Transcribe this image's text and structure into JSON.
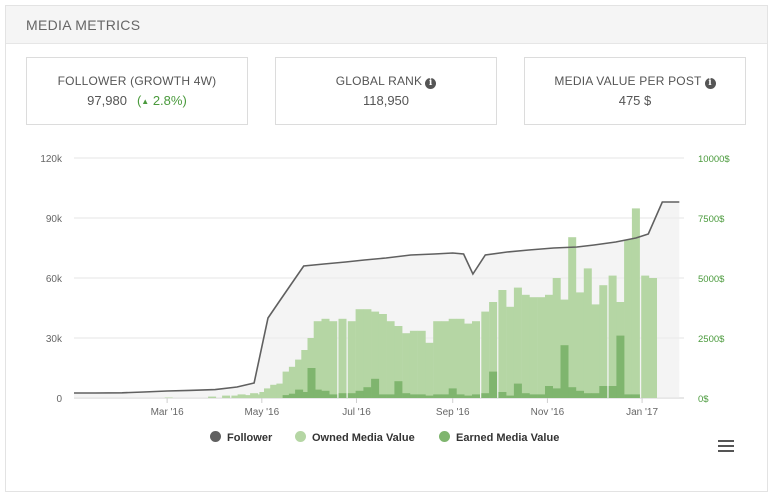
{
  "panel": {
    "title": "MEDIA METRICS"
  },
  "kpis": [
    {
      "label": "FOLLOWER (GROWTH 4W)",
      "value": "97,980",
      "growth": "2.8%",
      "growth_icon": "triangle-up-icon"
    },
    {
      "label": "GLOBAL RANK",
      "value": "118,950",
      "icon": "info-icon"
    },
    {
      "label": "MEDIA VALUE PER POST",
      "value": "475 $",
      "icon": "info-icon"
    }
  ],
  "legend": {
    "follower": "Follower",
    "owned": "Owned Media Value",
    "earned": "Earned Media Value"
  },
  "colors": {
    "follower": "#606060",
    "owned": "#b5d6a4",
    "earned": "#7fb56e",
    "right_axis": "#4a9a3c",
    "growth": "#4a9a3c"
  },
  "chart_data": {
    "type": "bar",
    "x_start": "2016-01-01",
    "x_end": "2017-01-28",
    "x_ticks": [
      "Mar '16",
      "May '16",
      "Jul '16",
      "Sep '16",
      "Nov '16",
      "Jan '17"
    ],
    "y_left": {
      "ticks": [
        "0",
        "30k",
        "60k",
        "90k",
        "120k"
      ],
      "values": [
        0,
        30000,
        60000,
        90000,
        120000
      ],
      "range": [
        0,
        120000
      ]
    },
    "y_right": {
      "ticks": [
        "0$",
        "2500$",
        "5000$",
        "7500$",
        "10000$"
      ],
      "values": [
        0,
        2500,
        5000,
        7500,
        10000
      ],
      "range": [
        0,
        10000
      ]
    },
    "grid": true,
    "legend_position": "bottom-center",
    "series": [
      {
        "name": "Follower",
        "type": "line",
        "axis": "left",
        "points": [
          [
            "2016-01-01",
            2500
          ],
          [
            "2016-01-15",
            2500
          ],
          [
            "2016-02-01",
            2600
          ],
          [
            "2016-02-15",
            3000
          ],
          [
            "2016-03-01",
            3500
          ],
          [
            "2016-03-15",
            3800
          ],
          [
            "2016-04-01",
            4200
          ],
          [
            "2016-04-15",
            5500
          ],
          [
            "2016-04-26",
            7500
          ],
          [
            "2016-05-05",
            40000
          ],
          [
            "2016-05-12",
            48000
          ],
          [
            "2016-05-20",
            57000
          ],
          [
            "2016-05-28",
            66000
          ],
          [
            "2016-06-10",
            67000
          ],
          [
            "2016-06-24",
            68000
          ],
          [
            "2016-07-06",
            69000
          ],
          [
            "2016-07-20",
            70000
          ],
          [
            "2016-08-05",
            71500
          ],
          [
            "2016-08-20",
            72000
          ],
          [
            "2016-09-01",
            72500
          ],
          [
            "2016-09-08",
            72000
          ],
          [
            "2016-09-14",
            62000
          ],
          [
            "2016-09-22",
            71500
          ],
          [
            "2016-10-06",
            73000
          ],
          [
            "2016-10-20",
            74000
          ],
          [
            "2016-11-05",
            75000
          ],
          [
            "2016-11-20",
            75500
          ],
          [
            "2016-12-01",
            76500
          ],
          [
            "2016-12-15",
            78000
          ],
          [
            "2016-12-28",
            80000
          ],
          [
            "2017-01-05",
            82000
          ],
          [
            "2017-01-14",
            98000
          ],
          [
            "2017-01-25",
            98000
          ]
        ]
      },
      {
        "name": "Owned Media Value",
        "type": "column",
        "axis": "right",
        "points": [
          [
            "2016-03-02",
            20
          ],
          [
            "2016-03-30",
            60
          ],
          [
            "2016-04-08",
            100
          ],
          [
            "2016-04-14",
            100
          ],
          [
            "2016-04-18",
            150
          ],
          [
            "2016-04-22",
            120
          ],
          [
            "2016-04-26",
            200
          ],
          [
            "2016-04-29",
            150
          ],
          [
            "2016-05-02",
            250
          ],
          [
            "2016-05-05",
            400
          ],
          [
            "2016-05-09",
            550
          ],
          [
            "2016-05-13",
            600
          ],
          [
            "2016-05-17",
            1100
          ],
          [
            "2016-05-21",
            1300
          ],
          [
            "2016-05-25",
            1600
          ],
          [
            "2016-05-29",
            2000
          ],
          [
            "2016-06-02",
            2500
          ],
          [
            "2016-06-06",
            3200
          ],
          [
            "2016-06-11",
            3300
          ],
          [
            "2016-06-16",
            3200
          ],
          [
            "2016-06-22",
            3300
          ],
          [
            "2016-06-28",
            3200
          ],
          [
            "2016-07-03",
            3700
          ],
          [
            "2016-07-08",
            3700
          ],
          [
            "2016-07-13",
            3600
          ],
          [
            "2016-07-18",
            3500
          ],
          [
            "2016-07-23",
            3200
          ],
          [
            "2016-07-28",
            3000
          ],
          [
            "2016-08-02",
            2700
          ],
          [
            "2016-08-07",
            2800
          ],
          [
            "2016-08-12",
            2800
          ],
          [
            "2016-08-17",
            2300
          ],
          [
            "2016-08-22",
            3200
          ],
          [
            "2016-08-27",
            3200
          ],
          [
            "2016-09-01",
            3300
          ],
          [
            "2016-09-06",
            3300
          ],
          [
            "2016-09-11",
            3100
          ],
          [
            "2016-09-16",
            3200
          ],
          [
            "2016-09-22",
            3600
          ],
          [
            "2016-09-27",
            4000
          ],
          [
            "2016-10-03",
            4500
          ],
          [
            "2016-10-08",
            3800
          ],
          [
            "2016-10-13",
            4600
          ],
          [
            "2016-10-18",
            4300
          ],
          [
            "2016-10-23",
            4200
          ],
          [
            "2016-10-28",
            4200
          ],
          [
            "2016-11-02",
            4300
          ],
          [
            "2016-11-07",
            5000
          ],
          [
            "2016-11-12",
            4100
          ],
          [
            "2016-11-17",
            6700
          ],
          [
            "2016-11-22",
            4400
          ],
          [
            "2016-11-27",
            5400
          ],
          [
            "2016-12-02",
            3900
          ],
          [
            "2016-12-07",
            4700
          ],
          [
            "2016-12-13",
            5100
          ],
          [
            "2016-12-18",
            4000
          ],
          [
            "2016-12-23",
            6600
          ],
          [
            "2016-12-28",
            7900
          ],
          [
            "2017-01-03",
            5100
          ],
          [
            "2017-01-08",
            5000
          ]
        ]
      },
      {
        "name": "Earned Media Value",
        "type": "column",
        "axis": "right",
        "points": [
          [
            "2016-05-17",
            120
          ],
          [
            "2016-05-21",
            180
          ],
          [
            "2016-05-25",
            350
          ],
          [
            "2016-05-29",
            250
          ],
          [
            "2016-06-02",
            1250
          ],
          [
            "2016-06-06",
            350
          ],
          [
            "2016-06-11",
            300
          ],
          [
            "2016-06-16",
            150
          ],
          [
            "2016-06-22",
            200
          ],
          [
            "2016-06-28",
            200
          ],
          [
            "2016-07-03",
            300
          ],
          [
            "2016-07-08",
            450
          ],
          [
            "2016-07-13",
            800
          ],
          [
            "2016-07-18",
            150
          ],
          [
            "2016-07-23",
            150
          ],
          [
            "2016-07-28",
            700
          ],
          [
            "2016-08-02",
            200
          ],
          [
            "2016-08-07",
            150
          ],
          [
            "2016-08-12",
            150
          ],
          [
            "2016-08-17",
            100
          ],
          [
            "2016-08-22",
            150
          ],
          [
            "2016-08-27",
            150
          ],
          [
            "2016-09-01",
            400
          ],
          [
            "2016-09-06",
            150
          ],
          [
            "2016-09-11",
            100
          ],
          [
            "2016-09-16",
            150
          ],
          [
            "2016-09-22",
            200
          ],
          [
            "2016-09-27",
            1100
          ],
          [
            "2016-10-03",
            250
          ],
          [
            "2016-10-08",
            100
          ],
          [
            "2016-10-13",
            600
          ],
          [
            "2016-10-18",
            200
          ],
          [
            "2016-10-23",
            150
          ],
          [
            "2016-10-28",
            150
          ],
          [
            "2016-11-02",
            500
          ],
          [
            "2016-11-07",
            400
          ],
          [
            "2016-11-12",
            2200
          ],
          [
            "2016-11-17",
            450
          ],
          [
            "2016-11-22",
            300
          ],
          [
            "2016-11-27",
            200
          ],
          [
            "2016-12-02",
            200
          ],
          [
            "2016-12-07",
            500
          ],
          [
            "2016-12-13",
            500
          ],
          [
            "2016-12-18",
            2600
          ],
          [
            "2016-12-23",
            150
          ],
          [
            "2016-12-28",
            150
          ]
        ]
      }
    ]
  }
}
